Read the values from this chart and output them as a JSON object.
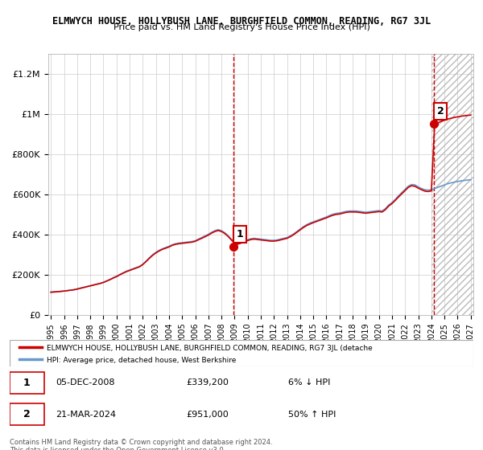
{
  "title": "ELMWYCH HOUSE, HOLLYBUSH LANE, BURGHFIELD COMMON, READING, RG7 3JL",
  "subtitle": "Price paid vs. HM Land Registry's House Price Index (HPI)",
  "hpi_label": "HPI: Average price, detached house, West Berkshire",
  "property_label": "ELMWYCH HOUSE, HOLLYBUSH LANE, BURGHFIELD COMMON, READING, RG7 3JL (detache",
  "legend_label_property": "ELMWYCH HOUSE, HOLLYBUSH LANE, BURGHFIELD COMMON, READING, RG7 3JL (detache",
  "legend_label_hpi": "HPI: Average price, detached house, West Berkshire",
  "sale1_date": "05-DEC-2008",
  "sale1_price": 339200,
  "sale1_hpi_diff": "6% ↓ HPI",
  "sale2_date": "21-MAR-2024",
  "sale2_price": 951000,
  "sale2_hpi_diff": "50% ↑ HPI",
  "footer": "Contains HM Land Registry data © Crown copyright and database right 2024.\nThis data is licensed under the Open Government Licence v3.0.",
  "line_color_property": "#cc0000",
  "line_color_hpi": "#6699cc",
  "background_color": "#ffffff",
  "grid_color": "#cccccc",
  "hatching_color": "#cccccc",
  "ylim": [
    0,
    1300000
  ],
  "yticks": [
    0,
    200000,
    400000,
    600000,
    800000,
    1000000,
    1200000
  ],
  "ytick_labels": [
    "£0",
    "£200K",
    "£400K",
    "£600K",
    "£800K",
    "£1M",
    "£1.2M"
  ],
  "years_start": 1995,
  "years_end": 2027,
  "sale1_year": 2008.92,
  "sale2_year": 2024.22,
  "hpi_data": [
    [
      1995.0,
      115000
    ],
    [
      1995.25,
      116000
    ],
    [
      1995.5,
      117000
    ],
    [
      1995.75,
      118000
    ],
    [
      1996.0,
      120000
    ],
    [
      1996.25,
      122000
    ],
    [
      1996.5,
      124000
    ],
    [
      1996.75,
      126000
    ],
    [
      1997.0,
      130000
    ],
    [
      1997.25,
      134000
    ],
    [
      1997.5,
      138000
    ],
    [
      1997.75,
      142000
    ],
    [
      1998.0,
      146000
    ],
    [
      1998.25,
      150000
    ],
    [
      1998.5,
      154000
    ],
    [
      1998.75,
      158000
    ],
    [
      1999.0,
      163000
    ],
    [
      1999.25,
      170000
    ],
    [
      1999.5,
      177000
    ],
    [
      1999.75,
      186000
    ],
    [
      2000.0,
      193000
    ],
    [
      2000.25,
      202000
    ],
    [
      2000.5,
      210000
    ],
    [
      2000.75,
      218000
    ],
    [
      2001.0,
      224000
    ],
    [
      2001.25,
      230000
    ],
    [
      2001.5,
      236000
    ],
    [
      2001.75,
      242000
    ],
    [
      2002.0,
      253000
    ],
    [
      2002.25,
      268000
    ],
    [
      2002.5,
      285000
    ],
    [
      2002.75,
      300000
    ],
    [
      2003.0,
      312000
    ],
    [
      2003.25,
      322000
    ],
    [
      2003.5,
      330000
    ],
    [
      2003.75,
      336000
    ],
    [
      2004.0,
      342000
    ],
    [
      2004.25,
      350000
    ],
    [
      2004.5,
      355000
    ],
    [
      2004.75,
      358000
    ],
    [
      2005.0,
      360000
    ],
    [
      2005.25,
      362000
    ],
    [
      2005.5,
      364000
    ],
    [
      2005.75,
      366000
    ],
    [
      2006.0,
      370000
    ],
    [
      2006.25,
      378000
    ],
    [
      2006.5,
      386000
    ],
    [
      2006.75,
      394000
    ],
    [
      2007.0,
      402000
    ],
    [
      2007.25,
      412000
    ],
    [
      2007.5,
      420000
    ],
    [
      2007.75,
      425000
    ],
    [
      2008.0,
      420000
    ],
    [
      2008.25,
      410000
    ],
    [
      2008.5,
      395000
    ],
    [
      2008.75,
      378000
    ],
    [
      2009.0,
      363000
    ],
    [
      2009.25,
      358000
    ],
    [
      2009.5,
      362000
    ],
    [
      2009.75,
      368000
    ],
    [
      2010.0,
      375000
    ],
    [
      2010.25,
      380000
    ],
    [
      2010.5,
      382000
    ],
    [
      2010.75,
      380000
    ],
    [
      2011.0,
      378000
    ],
    [
      2011.25,
      376000
    ],
    [
      2011.5,
      374000
    ],
    [
      2011.75,
      372000
    ],
    [
      2012.0,
      372000
    ],
    [
      2012.25,
      374000
    ],
    [
      2012.5,
      378000
    ],
    [
      2012.75,
      382000
    ],
    [
      2013.0,
      386000
    ],
    [
      2013.25,
      394000
    ],
    [
      2013.5,
      404000
    ],
    [
      2013.75,
      416000
    ],
    [
      2014.0,
      428000
    ],
    [
      2014.25,
      440000
    ],
    [
      2014.5,
      450000
    ],
    [
      2014.75,
      458000
    ],
    [
      2015.0,
      464000
    ],
    [
      2015.25,
      470000
    ],
    [
      2015.5,
      476000
    ],
    [
      2015.75,
      482000
    ],
    [
      2016.0,
      488000
    ],
    [
      2016.25,
      496000
    ],
    [
      2016.5,
      502000
    ],
    [
      2016.75,
      506000
    ],
    [
      2017.0,
      508000
    ],
    [
      2017.25,
      512000
    ],
    [
      2017.5,
      516000
    ],
    [
      2017.75,
      518000
    ],
    [
      2018.0,
      518000
    ],
    [
      2018.25,
      518000
    ],
    [
      2018.5,
      516000
    ],
    [
      2018.75,
      514000
    ],
    [
      2019.0,
      512000
    ],
    [
      2019.25,
      514000
    ],
    [
      2019.5,
      516000
    ],
    [
      2019.75,
      518000
    ],
    [
      2020.0,
      520000
    ],
    [
      2020.25,
      518000
    ],
    [
      2020.5,
      530000
    ],
    [
      2020.75,
      548000
    ],
    [
      2021.0,
      560000
    ],
    [
      2021.25,
      576000
    ],
    [
      2021.5,
      594000
    ],
    [
      2021.75,
      610000
    ],
    [
      2022.0,
      626000
    ],
    [
      2022.25,
      642000
    ],
    [
      2022.5,
      650000
    ],
    [
      2022.75,
      648000
    ],
    [
      2023.0,
      638000
    ],
    [
      2023.25,
      630000
    ],
    [
      2023.5,
      624000
    ],
    [
      2023.75,
      622000
    ],
    [
      2024.0,
      624000
    ],
    [
      2024.25,
      630000
    ],
    [
      2024.5,
      636000
    ],
    [
      2024.75,
      642000
    ],
    [
      2025.0,
      648000
    ],
    [
      2025.25,
      654000
    ],
    [
      2025.5,
      658000
    ],
    [
      2025.75,
      662000
    ],
    [
      2026.0,
      665000
    ],
    [
      2026.25,
      668000
    ],
    [
      2026.5,
      670000
    ],
    [
      2026.75,
      672000
    ],
    [
      2027.0,
      674000
    ]
  ],
  "property_hpi_data": [
    [
      1995.0,
      113000
    ],
    [
      1995.25,
      114500
    ],
    [
      1995.5,
      116000
    ],
    [
      1995.75,
      117500
    ],
    [
      1996.0,
      119000
    ],
    [
      1996.25,
      121000
    ],
    [
      1996.5,
      123500
    ],
    [
      1996.75,
      125500
    ],
    [
      1997.0,
      129000
    ],
    [
      1997.25,
      133000
    ],
    [
      1997.5,
      137000
    ],
    [
      1997.75,
      141000
    ],
    [
      1998.0,
      145000
    ],
    [
      1998.25,
      149000
    ],
    [
      1998.5,
      153000
    ],
    [
      1998.75,
      157000
    ],
    [
      1999.0,
      162000
    ],
    [
      1999.25,
      169000
    ],
    [
      1999.5,
      176000
    ],
    [
      1999.75,
      184000
    ],
    [
      2000.0,
      191000
    ],
    [
      2000.25,
      200000
    ],
    [
      2000.5,
      208000
    ],
    [
      2000.75,
      216000
    ],
    [
      2001.0,
      222000
    ],
    [
      2001.25,
      228000
    ],
    [
      2001.5,
      234000
    ],
    [
      2001.75,
      240000
    ],
    [
      2002.0,
      251000
    ],
    [
      2002.25,
      266000
    ],
    [
      2002.5,
      282000
    ],
    [
      2002.75,
      297000
    ],
    [
      2003.0,
      309000
    ],
    [
      2003.25,
      319000
    ],
    [
      2003.5,
      327000
    ],
    [
      2003.75,
      333000
    ],
    [
      2004.0,
      339000
    ],
    [
      2004.25,
      347000
    ],
    [
      2004.5,
      352000
    ],
    [
      2004.75,
      355000
    ],
    [
      2005.0,
      357000
    ],
    [
      2005.25,
      359000
    ],
    [
      2005.5,
      361000
    ],
    [
      2005.75,
      363000
    ],
    [
      2006.0,
      367000
    ],
    [
      2006.25,
      375000
    ],
    [
      2006.5,
      382000
    ],
    [
      2006.75,
      390000
    ],
    [
      2007.0,
      398000
    ],
    [
      2007.25,
      408000
    ],
    [
      2007.5,
      416000
    ],
    [
      2007.75,
      421000
    ],
    [
      2008.0,
      416000
    ],
    [
      2008.25,
      406000
    ],
    [
      2008.5,
      392000
    ],
    [
      2008.75,
      374000
    ],
    [
      2009.0,
      358000
    ],
    [
      2009.25,
      353000
    ],
    [
      2009.5,
      358000
    ],
    [
      2009.75,
      364000
    ],
    [
      2010.0,
      371000
    ],
    [
      2010.25,
      376000
    ],
    [
      2010.5,
      378000
    ],
    [
      2010.75,
      376000
    ],
    [
      2011.0,
      374000
    ],
    [
      2011.25,
      372000
    ],
    [
      2011.5,
      370000
    ],
    [
      2011.75,
      368000
    ],
    [
      2012.0,
      368000
    ],
    [
      2012.25,
      370000
    ],
    [
      2012.5,
      374000
    ],
    [
      2012.75,
      378000
    ],
    [
      2013.0,
      382000
    ],
    [
      2013.25,
      390000
    ],
    [
      2013.5,
      400000
    ],
    [
      2013.75,
      412000
    ],
    [
      2014.0,
      424000
    ],
    [
      2014.25,
      436000
    ],
    [
      2014.5,
      446000
    ],
    [
      2014.75,
      453000
    ],
    [
      2015.0,
      460000
    ],
    [
      2015.25,
      466000
    ],
    [
      2015.5,
      472000
    ],
    [
      2015.75,
      478000
    ],
    [
      2016.0,
      484000
    ],
    [
      2016.25,
      491000
    ],
    [
      2016.5,
      497000
    ],
    [
      2016.75,
      501000
    ],
    [
      2017.0,
      503000
    ],
    [
      2017.25,
      507000
    ],
    [
      2017.5,
      511000
    ],
    [
      2017.75,
      513000
    ],
    [
      2018.0,
      513000
    ],
    [
      2018.25,
      513000
    ],
    [
      2018.5,
      511000
    ],
    [
      2018.75,
      509000
    ],
    [
      2019.0,
      507000
    ],
    [
      2019.25,
      509000
    ],
    [
      2019.5,
      511000
    ],
    [
      2019.75,
      513000
    ],
    [
      2020.0,
      515000
    ],
    [
      2020.25,
      513000
    ],
    [
      2020.5,
      525000
    ],
    [
      2020.75,
      543000
    ],
    [
      2021.0,
      555000
    ],
    [
      2021.25,
      571000
    ],
    [
      2021.5,
      588000
    ],
    [
      2021.75,
      604000
    ],
    [
      2022.0,
      620000
    ],
    [
      2022.25,
      636000
    ],
    [
      2022.5,
      644000
    ],
    [
      2022.75,
      641000
    ],
    [
      2023.0,
      632000
    ],
    [
      2023.25,
      624000
    ],
    [
      2023.5,
      617000
    ],
    [
      2023.75,
      615000
    ],
    [
      2024.0,
      618000
    ],
    [
      2024.25,
      951000
    ],
    [
      2024.5,
      958000
    ],
    [
      2024.75,
      964000
    ],
    [
      2025.0,
      970000
    ],
    [
      2025.25,
      976000
    ],
    [
      2025.5,
      980000
    ],
    [
      2025.75,
      984000
    ],
    [
      2026.0,
      987000
    ],
    [
      2026.25,
      990000
    ],
    [
      2026.5,
      992000
    ],
    [
      2026.75,
      994000
    ],
    [
      2027.0,
      996000
    ]
  ],
  "xticks": [
    1995,
    1996,
    1997,
    1998,
    1999,
    2000,
    2001,
    2002,
    2003,
    2004,
    2005,
    2006,
    2007,
    2008,
    2009,
    2010,
    2011,
    2012,
    2013,
    2014,
    2015,
    2016,
    2017,
    2018,
    2019,
    2020,
    2021,
    2022,
    2023,
    2024,
    2025,
    2026,
    2027
  ]
}
